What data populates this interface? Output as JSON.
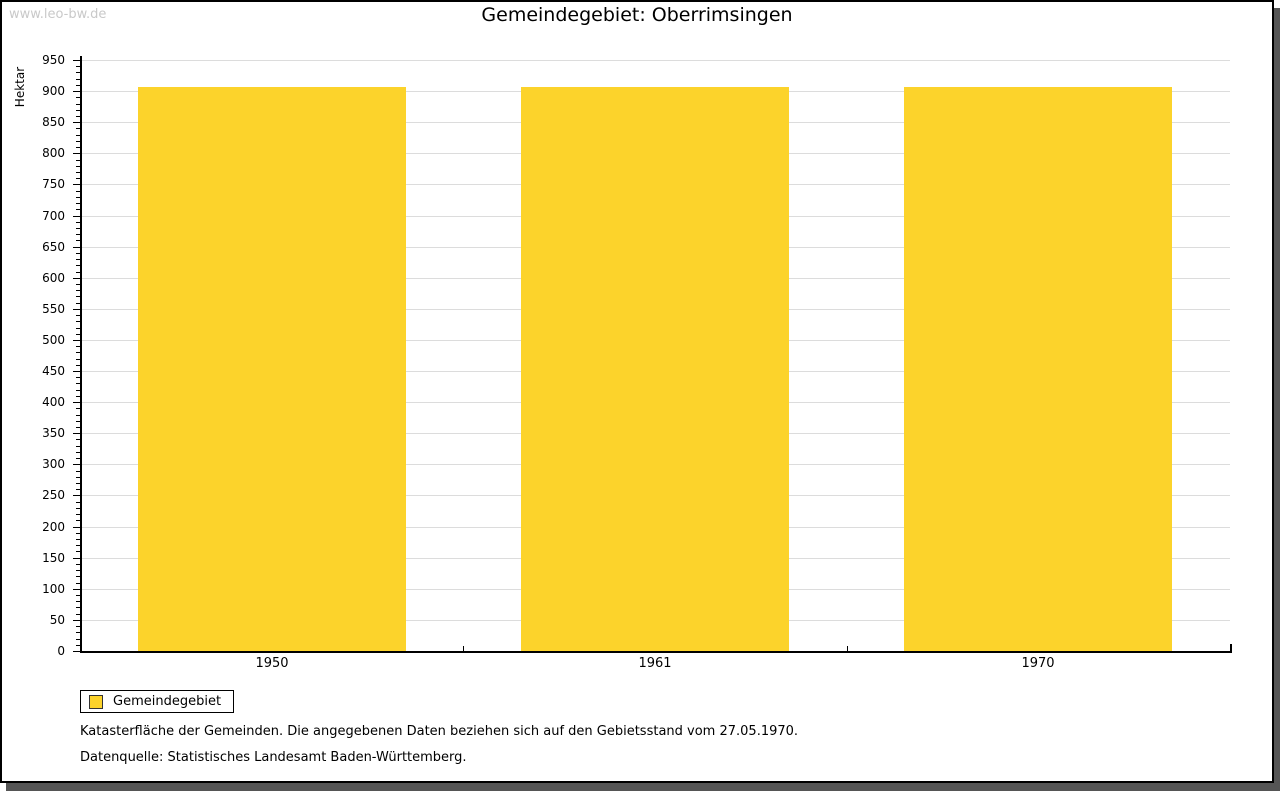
{
  "watermark": "www.leo-bw.de",
  "page_title": "Gemeindegebiet: Oberrimsingen",
  "chart_data": {
    "type": "bar",
    "title": "Gemeindegebiet: Oberrimsingen",
    "xlabel": "",
    "ylabel": "Hektar",
    "categories": [
      "1950",
      "1961",
      "1970"
    ],
    "series": [
      {
        "name": "Gemeindegebiet",
        "values": [
          906,
          906,
          906
        ]
      }
    ],
    "ylim": [
      0,
      950
    ],
    "y_major_step": 50,
    "y_minor_step": 10,
    "grid": true,
    "legend_position": "bottom-left",
    "bar_color": "#FCD32B",
    "grid_color": "#DCDCDC",
    "axis_color": "#000000"
  },
  "legend": {
    "label": "Gemeindegebiet"
  },
  "footnotes": {
    "line1": "Katasterfläche der Gemeinden. Die angegebenen Daten beziehen sich auf den Gebietsstand vom 27.05.1970.",
    "line2": "Datenquelle: Statistisches Landesamt Baden-Württemberg."
  },
  "colors": {
    "bar": "#FCD32B",
    "grid": "#DCDCDC",
    "axis": "#000000",
    "watermark": "#C9C9C9",
    "frame_shadow": "#555555"
  }
}
